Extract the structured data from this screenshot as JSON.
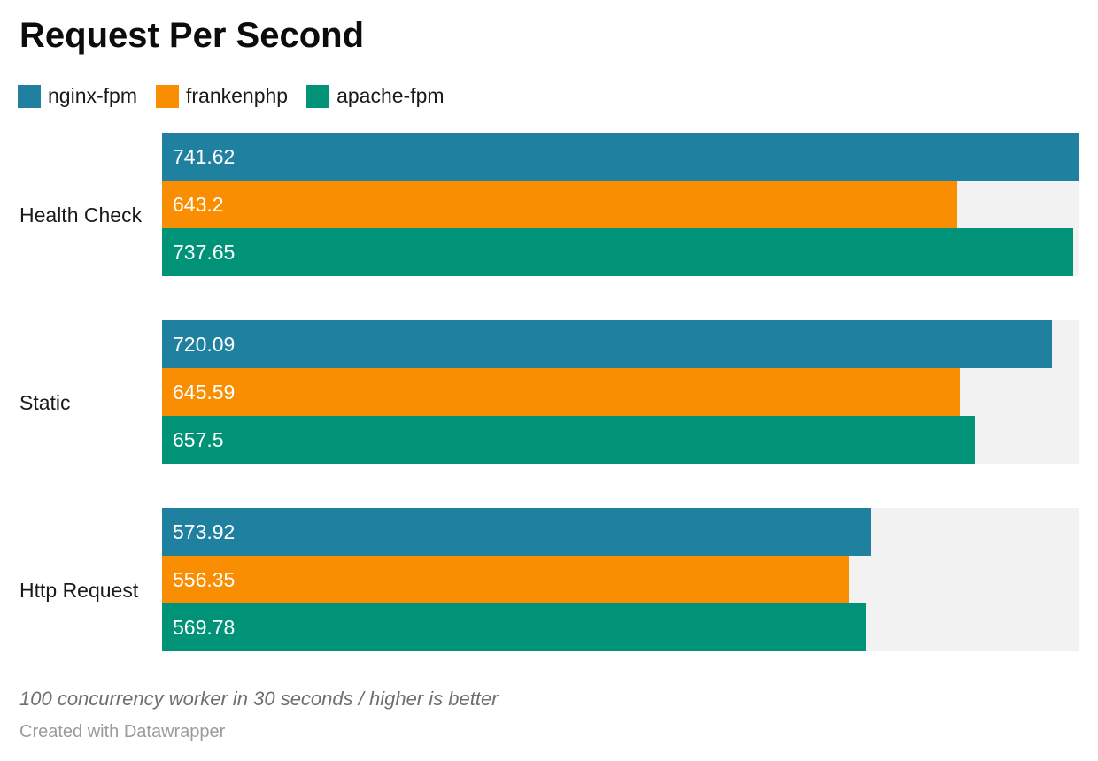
{
  "chart_data": {
    "type": "bar",
    "orientation": "horizontal",
    "title": "Request Per Second",
    "categories": [
      "Health Check",
      "Static",
      "Http Request"
    ],
    "series": [
      {
        "name": "nginx-fpm",
        "color": "#1f80a0",
        "values": [
          741.62,
          720.09,
          573.92
        ]
      },
      {
        "name": "frankenphp",
        "color": "#f98e02",
        "values": [
          643.2,
          645.59,
          556.35
        ]
      },
      {
        "name": "apache-fpm",
        "color": "#009377",
        "values": [
          737.65,
          657.5,
          569.78
        ]
      }
    ],
    "value_labels": [
      [
        "741.62",
        "643.2",
        "737.65"
      ],
      [
        "720.09",
        "645.59",
        "657.5"
      ],
      [
        "573.92",
        "556.35",
        "569.78"
      ]
    ],
    "xlim": [
      0,
      741.62
    ],
    "value_label_position": "inside-left",
    "legend_position": "top",
    "grid": false,
    "track_color": "#f2f2f2",
    "footnote": "100 concurrency worker in 30 seconds / higher is better",
    "attribution": "Created with Datawrapper"
  }
}
